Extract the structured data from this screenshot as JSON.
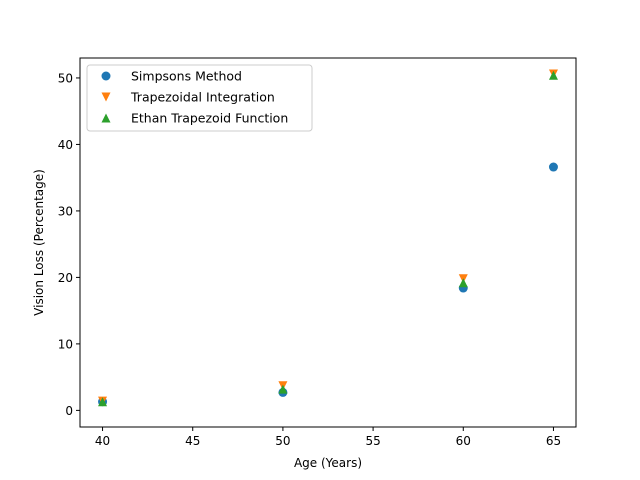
{
  "chart_data": {
    "type": "scatter",
    "xlabel": "Age (Years)",
    "ylabel": "Vision Loss (Percentage)",
    "xlim": [
      38.75,
      66.25
    ],
    "ylim": [
      -2.5,
      53.0
    ],
    "xticks": [
      40,
      45,
      50,
      55,
      60,
      65
    ],
    "yticks": [
      0,
      10,
      20,
      30,
      40,
      50
    ],
    "grid": false,
    "legend_position": "top-left",
    "series": [
      {
        "name": "Simpsons Method",
        "marker": "circle",
        "color": "#1f77b4",
        "x": [
          40,
          50,
          60,
          65
        ],
        "y": [
          1.3,
          2.7,
          18.4,
          36.6
        ]
      },
      {
        "name": "Trapezoidal Integration",
        "marker": "triangle-down",
        "color": "#ff7f0e",
        "x": [
          40,
          50,
          60,
          65
        ],
        "y": [
          1.4,
          3.7,
          19.8,
          50.6
        ]
      },
      {
        "name": "Ethan Trapezoid Function",
        "marker": "triangle-up",
        "color": "#2ca02c",
        "x": [
          40,
          50,
          60,
          65
        ],
        "y": [
          1.3,
          3.2,
          19.2,
          50.4
        ]
      }
    ]
  }
}
